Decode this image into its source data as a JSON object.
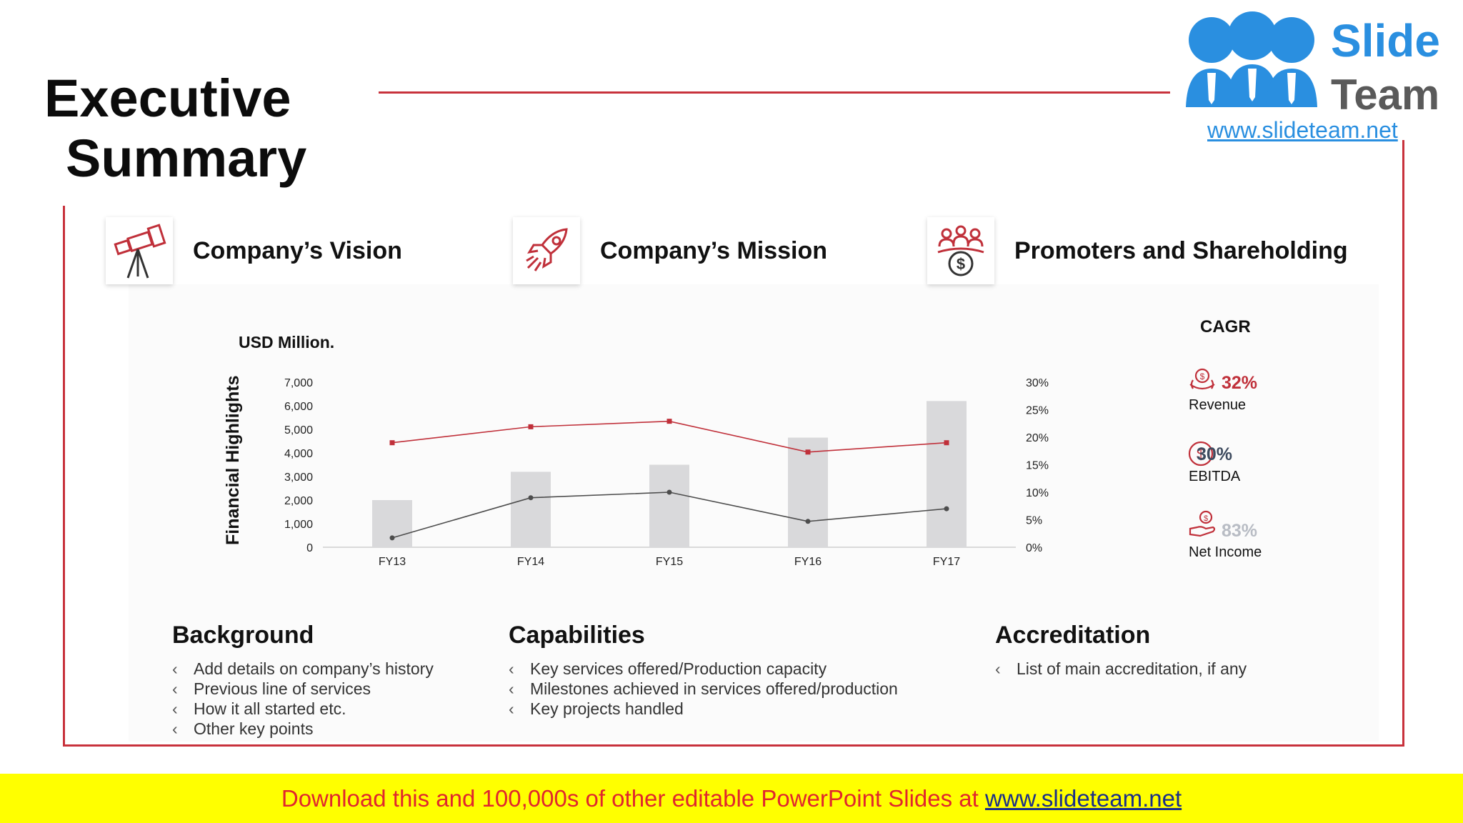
{
  "header": {
    "title_line1": "Executive",
    "title_line2": "Summary"
  },
  "logo": {
    "line1": "Slide",
    "line2": "Team",
    "url": "www.slideteam.net"
  },
  "headings": [
    {
      "label": "Company’s Vision",
      "icon": "telescope-icon"
    },
    {
      "label": "Company’s Mission",
      "icon": "rocket-icon"
    },
    {
      "label": "Promoters and Shareholding",
      "icon": "shareholders-icon"
    }
  ],
  "chart_data": {
    "type": "bar",
    "title": "USD Million.",
    "ylabel": "Financial Highlights",
    "categories": [
      "FY13",
      "FY14",
      "FY15",
      "FY16",
      "FY17"
    ],
    "ylim": [
      0,
      7000
    ],
    "y2lim": [
      0,
      0.3
    ],
    "yticks": [
      "0",
      "1,000",
      "2,000",
      "3,000",
      "4,000",
      "5,000",
      "6,000",
      "7,000"
    ],
    "y2ticks": [
      "0%",
      "5%",
      "10%",
      "15%",
      "20%",
      "25%",
      "30%"
    ],
    "series": [
      {
        "type": "bar",
        "values": [
          2000,
          3200,
          3500,
          4650,
          6200
        ],
        "color": "#d9d9db"
      },
      {
        "type": "line",
        "axis": "right",
        "values": [
          0.19,
          0.219,
          0.229,
          0.173,
          0.19
        ],
        "color": "#c0303a"
      },
      {
        "type": "line",
        "axis": "right",
        "values": [
          0.017,
          0.09,
          0.1,
          0.047,
          0.07
        ],
        "color": "#4d4d4d"
      }
    ],
    "grid": false
  },
  "cagr": {
    "title": "CAGR",
    "items": [
      {
        "value": "32%",
        "label": "Revenue",
        "color": "#c0303a",
        "icon": "revenue-icon"
      },
      {
        "value": "30%",
        "label": "EBITDA",
        "color": "#3d4a5e",
        "icon": "dollar-icon"
      },
      {
        "value": "83%",
        "label": "Net Income",
        "color": "#b8bcc4",
        "icon": "hand-money-icon"
      }
    ]
  },
  "sections": [
    {
      "title": "Background",
      "items": [
        "Add details on company’s history",
        "Previous line of services",
        "How it all started etc.",
        "Other key points"
      ]
    },
    {
      "title": "Capabilities",
      "items": [
        "Key services offered/Production capacity",
        "Milestones achieved in services offered/production",
        "Key projects handled"
      ]
    },
    {
      "title": "Accreditation",
      "items": [
        "List of main accreditation, if any"
      ]
    }
  ],
  "banner": {
    "text": "Download this and 100,000s of other editable PowerPoint Slides at ",
    "link": "www.slideteam.net"
  },
  "colors": {
    "accent": "#c8323c",
    "banner_bg": "#ffff00",
    "banner_text": "#e0262e",
    "logo_blue": "#2a8fe0"
  }
}
